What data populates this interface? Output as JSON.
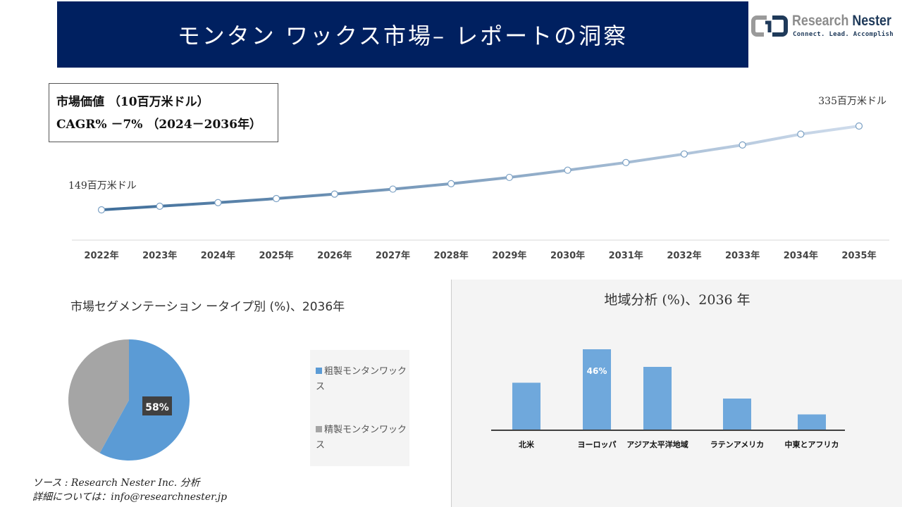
{
  "header": {
    "title": "モンタン ワックス市場– レポートの洞察"
  },
  "logo": {
    "name_part1": "Research ",
    "name_part2": "Nester",
    "tagline": "Connect. Lead. Accomplish"
  },
  "infobox": {
    "line1": "市場価値 （10百万米ドル）",
    "line2": "CAGR% －7% （2024－2036年）"
  },
  "chart_data": [
    {
      "type": "line",
      "title": "市場価値",
      "x": [
        "2022年",
        "2023年",
        "2024年",
        "2025年",
        "2026年",
        "2027年",
        "2028年",
        "2029年",
        "2030年",
        "2031年",
        "2032年",
        "2033年",
        "2034年",
        "2035年"
      ],
      "values": [
        149,
        157,
        165,
        174,
        184,
        195,
        207,
        221,
        237,
        254,
        273,
        293,
        317,
        335
      ],
      "annotations": {
        "start": "149百万米ドル",
        "end": "335百万米ドル"
      },
      "ylim": [
        100,
        360
      ]
    },
    {
      "type": "pie",
      "title": "市場セグメンテーション ータイプ別 (%)、2036年",
      "labels": [
        "粗製モンタンワックス",
        "精製モンタンワックス"
      ],
      "values": [
        58,
        42
      ],
      "colors": [
        "#5b9bd5",
        "#a5a5a5"
      ],
      "data_label": "58%",
      "legend": "right"
    },
    {
      "type": "bar",
      "title": "地域分析 (%)、2036 年",
      "categories": [
        "北米",
        "ヨーロッパ",
        "アジア太平洋地域",
        "ラテンアメリカ",
        "中東とアフリカ"
      ],
      "values": [
        27,
        46,
        36,
        18,
        9
      ],
      "data_label": "46%",
      "color": "#6fa8dc"
    }
  ],
  "footer": {
    "source": "ソース : Research Nester Inc. 分析",
    "contact": "詳細については：info@researchnester.jp"
  }
}
